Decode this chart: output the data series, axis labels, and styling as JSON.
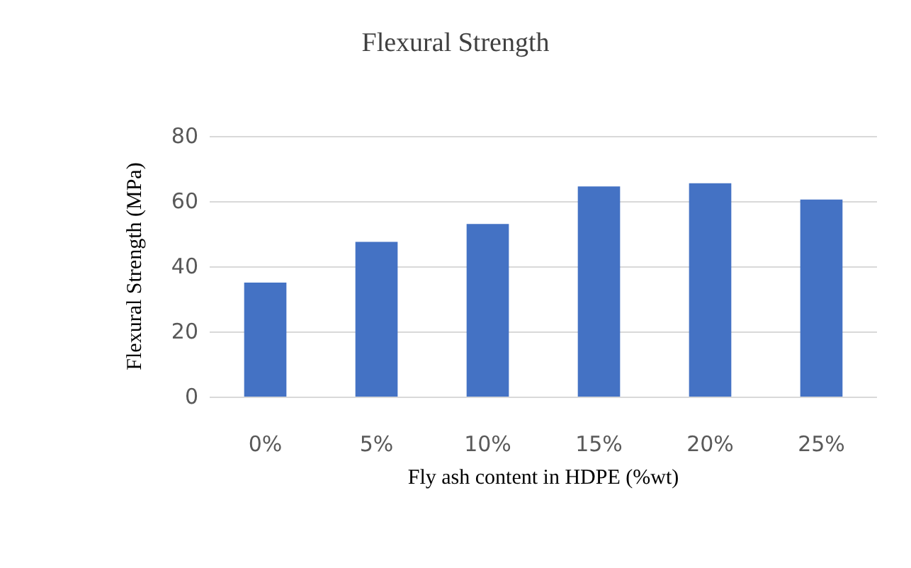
{
  "chart_data": {
    "type": "bar",
    "title": "Flexural Strength",
    "xlabel": "Fly ash content in HDPE (%wt)",
    "ylabel": "Flexural Strength (MPa)",
    "categories": [
      "0%",
      "5%",
      "10%",
      "15%",
      "20%",
      "25%"
    ],
    "values": [
      35,
      47.5,
      53,
      64.5,
      65.5,
      60.5
    ],
    "color": "#4472c4",
    "ylim": [
      0,
      80
    ],
    "yticks": [
      0,
      20,
      40,
      60,
      80
    ],
    "grid": "y"
  }
}
